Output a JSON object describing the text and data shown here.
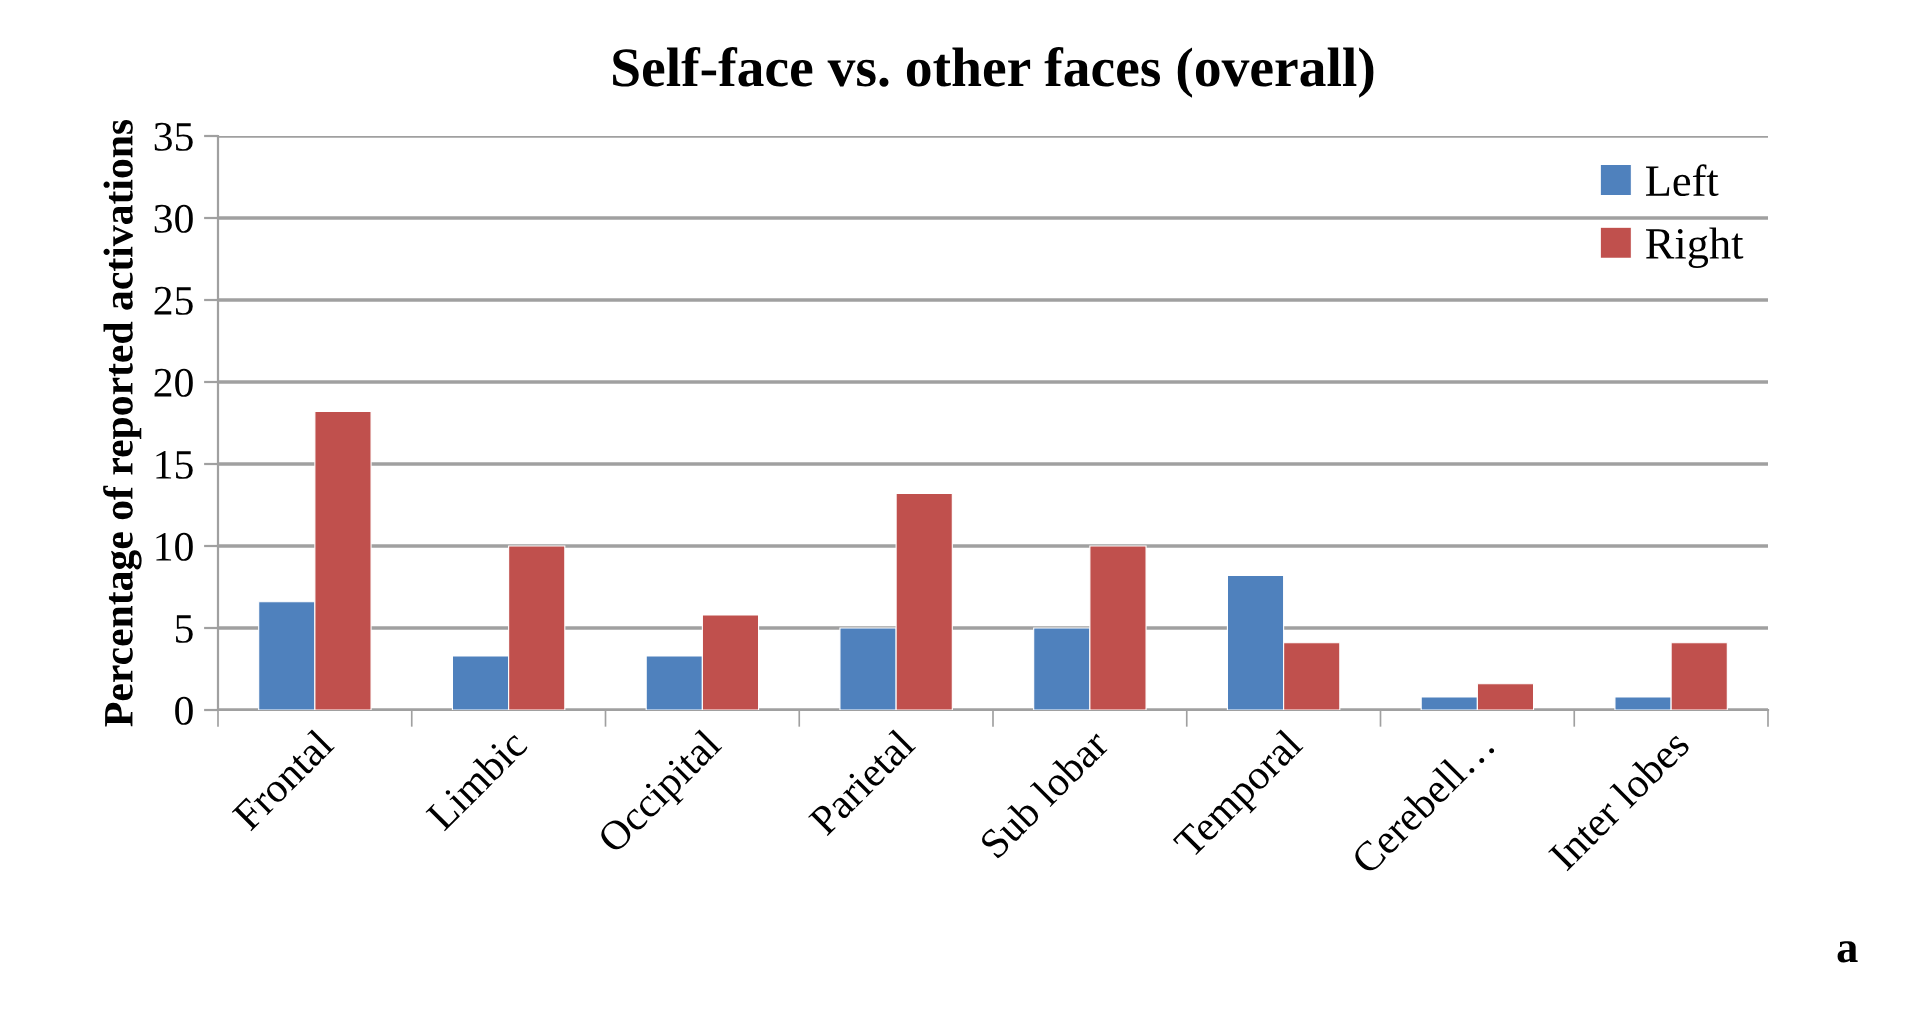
{
  "chart_data": {
    "type": "bar",
    "title": "Self-face vs. other faces (overall)",
    "ylabel": "Percentage of reported activations",
    "categories": [
      "Frontal",
      "Limbic",
      "Occipital",
      "Parietal",
      "Sub lobar",
      "Temporal",
      "Cerebell…",
      "Inter lobes"
    ],
    "series": [
      {
        "name": "Left",
        "color": "#4f81bd",
        "values": [
          6.6,
          3.3,
          3.3,
          5.0,
          5.0,
          8.2,
          0.8,
          0.8
        ]
      },
      {
        "name": "Right",
        "color": "#c0504d",
        "values": [
          18.2,
          10.0,
          5.8,
          13.2,
          10.0,
          4.1,
          1.6,
          4.1
        ]
      }
    ],
    "ylim": [
      0,
      35
    ],
    "yticks": [
      0,
      5,
      10,
      15,
      20,
      25,
      30,
      35
    ],
    "grid": "y",
    "legend": "top right",
    "annotations": [
      "a"
    ]
  }
}
